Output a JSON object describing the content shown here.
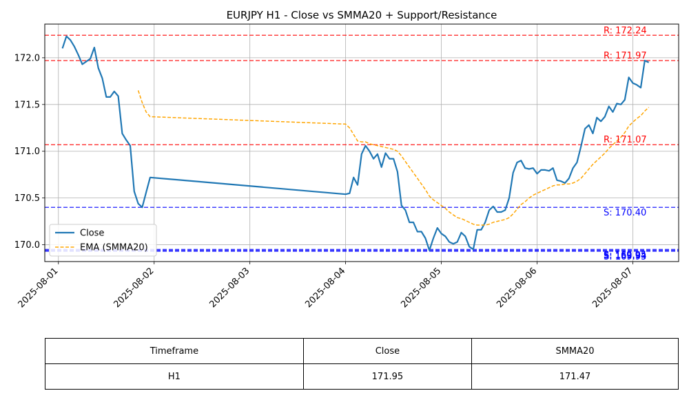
{
  "chart_data": {
    "type": "line",
    "title": "EURJPY H1 - Close vs SMMA20 + Support/Resistance",
    "xlabel": "",
    "ylabel": "",
    "x_ticks": [
      "2025-08-01",
      "2025-08-02",
      "2025-08-03",
      "2025-08-04",
      "2025-08-05",
      "2025-08-06",
      "2025-08-07"
    ],
    "y_ticks": [
      "170.0",
      "170.5",
      "171.0",
      "171.5",
      "172.0"
    ],
    "ylim": [
      169.82,
      172.36
    ],
    "grid": true,
    "legend_position": "lower-left",
    "series": [
      {
        "name": "Close",
        "style": "solid",
        "color": "#1f77b4",
        "points": [
          [
            "2025-08-01 01:00",
            172.1
          ],
          [
            "2025-08-01 02:00",
            172.23
          ],
          [
            "2025-08-01 03:00",
            172.19
          ],
          [
            "2025-08-01 04:00",
            172.12
          ],
          [
            "2025-08-01 05:00",
            172.03
          ],
          [
            "2025-08-01 06:00",
            171.93
          ],
          [
            "2025-08-01 07:00",
            171.96
          ],
          [
            "2025-08-01 08:00",
            171.99
          ],
          [
            "2025-08-01 09:00",
            172.11
          ],
          [
            "2025-08-01 10:00",
            171.89
          ],
          [
            "2025-08-01 11:00",
            171.78
          ],
          [
            "2025-08-01 12:00",
            171.58
          ],
          [
            "2025-08-01 13:00",
            171.58
          ],
          [
            "2025-08-01 14:00",
            171.64
          ],
          [
            "2025-08-01 15:00",
            171.59
          ],
          [
            "2025-08-01 16:00",
            171.19
          ],
          [
            "2025-08-01 17:00",
            171.12
          ],
          [
            "2025-08-01 18:00",
            171.06
          ],
          [
            "2025-08-01 19:00",
            170.57
          ],
          [
            "2025-08-01 20:00",
            170.44
          ],
          [
            "2025-08-01 21:00",
            170.4
          ],
          [
            "2025-08-01 22:00",
            170.56
          ],
          [
            "2025-08-01 23:00",
            170.72
          ],
          [
            "2025-08-04 00:00",
            170.54
          ],
          [
            "2025-08-04 01:00",
            170.55
          ],
          [
            "2025-08-04 02:00",
            170.72
          ],
          [
            "2025-08-04 03:00",
            170.64
          ],
          [
            "2025-08-04 04:00",
            170.97
          ],
          [
            "2025-08-04 05:00",
            171.06
          ],
          [
            "2025-08-04 06:00",
            171.0
          ],
          [
            "2025-08-04 07:00",
            170.92
          ],
          [
            "2025-08-04 08:00",
            170.97
          ],
          [
            "2025-08-04 09:00",
            170.83
          ],
          [
            "2025-08-04 10:00",
            170.98
          ],
          [
            "2025-08-04 11:00",
            170.92
          ],
          [
            "2025-08-04 12:00",
            170.92
          ],
          [
            "2025-08-04 13:00",
            170.78
          ],
          [
            "2025-08-04 14:00",
            170.42
          ],
          [
            "2025-08-04 15:00",
            170.37
          ],
          [
            "2025-08-04 16:00",
            170.24
          ],
          [
            "2025-08-04 17:00",
            170.24
          ],
          [
            "2025-08-04 18:00",
            170.14
          ],
          [
            "2025-08-04 19:00",
            170.14
          ],
          [
            "2025-08-04 20:00",
            170.07
          ],
          [
            "2025-08-04 21:00",
            169.94
          ],
          [
            "2025-08-04 22:00",
            170.07
          ],
          [
            "2025-08-04 23:00",
            170.18
          ],
          [
            "2025-08-05 00:00",
            170.12
          ],
          [
            "2025-08-05 01:00",
            170.09
          ],
          [
            "2025-08-05 02:00",
            170.03
          ],
          [
            "2025-08-05 03:00",
            170.01
          ],
          [
            "2025-08-05 04:00",
            170.03
          ],
          [
            "2025-08-05 05:00",
            170.13
          ],
          [
            "2025-08-05 06:00",
            170.09
          ],
          [
            "2025-08-05 07:00",
            169.98
          ],
          [
            "2025-08-05 08:00",
            169.95
          ],
          [
            "2025-08-05 09:00",
            170.16
          ],
          [
            "2025-08-05 10:00",
            170.16
          ],
          [
            "2025-08-05 11:00",
            170.24
          ],
          [
            "2025-08-05 12:00",
            170.37
          ],
          [
            "2025-08-05 13:00",
            170.41
          ],
          [
            "2025-08-05 14:00",
            170.35
          ],
          [
            "2025-08-05 15:00",
            170.35
          ],
          [
            "2025-08-05 16:00",
            170.37
          ],
          [
            "2025-08-05 17:00",
            170.5
          ],
          [
            "2025-08-05 18:00",
            170.77
          ],
          [
            "2025-08-05 19:00",
            170.88
          ],
          [
            "2025-08-05 20:00",
            170.9
          ],
          [
            "2025-08-05 21:00",
            170.82
          ],
          [
            "2025-08-05 22:00",
            170.81
          ],
          [
            "2025-08-05 23:00",
            170.82
          ],
          [
            "2025-08-06 00:00",
            170.76
          ],
          [
            "2025-08-06 01:00",
            170.8
          ],
          [
            "2025-08-06 02:00",
            170.8
          ],
          [
            "2025-08-06 03:00",
            170.79
          ],
          [
            "2025-08-06 04:00",
            170.82
          ],
          [
            "2025-08-06 05:00",
            170.69
          ],
          [
            "2025-08-06 06:00",
            170.68
          ],
          [
            "2025-08-06 07:00",
            170.66
          ],
          [
            "2025-08-06 08:00",
            170.71
          ],
          [
            "2025-08-06 09:00",
            170.82
          ],
          [
            "2025-08-06 10:00",
            170.88
          ],
          [
            "2025-08-06 11:00",
            171.05
          ],
          [
            "2025-08-06 12:00",
            171.24
          ],
          [
            "2025-08-06 13:00",
            171.28
          ],
          [
            "2025-08-06 14:00",
            171.19
          ],
          [
            "2025-08-06 15:00",
            171.36
          ],
          [
            "2025-08-06 16:00",
            171.32
          ],
          [
            "2025-08-06 17:00",
            171.37
          ],
          [
            "2025-08-06 18:00",
            171.48
          ],
          [
            "2025-08-06 19:00",
            171.42
          ],
          [
            "2025-08-06 20:00",
            171.51
          ],
          [
            "2025-08-06 21:00",
            171.5
          ],
          [
            "2025-08-06 22:00",
            171.55
          ],
          [
            "2025-08-06 23:00",
            171.79
          ],
          [
            "2025-08-07 00:00",
            171.73
          ],
          [
            "2025-08-07 01:00",
            171.71
          ],
          [
            "2025-08-07 02:00",
            171.68
          ],
          [
            "2025-08-07 03:00",
            171.97
          ],
          [
            "2025-08-07 04:00",
            171.95
          ]
        ]
      },
      {
        "name": "EMA (SMMA20)",
        "style": "dashed",
        "color": "#ffa500",
        "points": [
          [
            "2025-08-01 20:00",
            171.65
          ],
          [
            "2025-08-01 21:00",
            171.52
          ],
          [
            "2025-08-01 22:00",
            171.42
          ],
          [
            "2025-08-01 23:00",
            171.37
          ],
          [
            "2025-08-04 00:00",
            171.29
          ],
          [
            "2025-08-04 01:00",
            171.25
          ],
          [
            "2025-08-04 02:00",
            171.18
          ],
          [
            "2025-08-04 03:00",
            171.11
          ],
          [
            "2025-08-04 04:00",
            171.1
          ],
          [
            "2025-08-04 05:00",
            171.1
          ],
          [
            "2025-08-04 06:00",
            171.08
          ],
          [
            "2025-08-04 07:00",
            171.07
          ],
          [
            "2025-08-04 08:00",
            171.06
          ],
          [
            "2025-08-04 09:00",
            171.05
          ],
          [
            "2025-08-04 10:00",
            171.04
          ],
          [
            "2025-08-04 11:00",
            171.03
          ],
          [
            "2025-08-04 12:00",
            171.02
          ],
          [
            "2025-08-04 13:00",
            171.0
          ],
          [
            "2025-08-04 14:00",
            170.95
          ],
          [
            "2025-08-04 15:00",
            170.89
          ],
          [
            "2025-08-04 16:00",
            170.83
          ],
          [
            "2025-08-04 17:00",
            170.77
          ],
          [
            "2025-08-04 18:00",
            170.71
          ],
          [
            "2025-08-04 19:00",
            170.65
          ],
          [
            "2025-08-04 20:00",
            170.59
          ],
          [
            "2025-08-04 21:00",
            170.52
          ],
          [
            "2025-08-04 22:00",
            170.48
          ],
          [
            "2025-08-04 23:00",
            170.45
          ],
          [
            "2025-08-05 00:00",
            170.42
          ],
          [
            "2025-08-05 01:00",
            170.39
          ],
          [
            "2025-08-05 02:00",
            170.35
          ],
          [
            "2025-08-05 03:00",
            170.32
          ],
          [
            "2025-08-05 04:00",
            170.29
          ],
          [
            "2025-08-05 05:00",
            170.28
          ],
          [
            "2025-08-05 06:00",
            170.26
          ],
          [
            "2025-08-05 07:00",
            170.24
          ],
          [
            "2025-08-05 08:00",
            170.22
          ],
          [
            "2025-08-05 09:00",
            170.21
          ],
          [
            "2025-08-05 10:00",
            170.21
          ],
          [
            "2025-08-05 11:00",
            170.21
          ],
          [
            "2025-08-05 12:00",
            170.22
          ],
          [
            "2025-08-05 13:00",
            170.24
          ],
          [
            "2025-08-05 14:00",
            170.25
          ],
          [
            "2025-08-05 15:00",
            170.26
          ],
          [
            "2025-08-05 16:00",
            170.27
          ],
          [
            "2025-08-05 17:00",
            170.29
          ],
          [
            "2025-08-05 18:00",
            170.33
          ],
          [
            "2025-08-05 19:00",
            170.38
          ],
          [
            "2025-08-05 20:00",
            170.43
          ],
          [
            "2025-08-05 21:00",
            170.46
          ],
          [
            "2025-08-05 22:00",
            170.5
          ],
          [
            "2025-08-05 23:00",
            170.53
          ],
          [
            "2025-08-06 00:00",
            170.55
          ],
          [
            "2025-08-06 01:00",
            170.57
          ],
          [
            "2025-08-06 02:00",
            170.59
          ],
          [
            "2025-08-06 03:00",
            170.61
          ],
          [
            "2025-08-06 04:00",
            170.63
          ],
          [
            "2025-08-06 05:00",
            170.64
          ],
          [
            "2025-08-06 06:00",
            170.64
          ],
          [
            "2025-08-06 07:00",
            170.65
          ],
          [
            "2025-08-06 08:00",
            170.65
          ],
          [
            "2025-08-06 09:00",
            170.66
          ],
          [
            "2025-08-06 10:00",
            170.68
          ],
          [
            "2025-08-06 11:00",
            170.71
          ],
          [
            "2025-08-06 12:00",
            170.76
          ],
          [
            "2025-08-06 13:00",
            170.81
          ],
          [
            "2025-08-06 14:00",
            170.86
          ],
          [
            "2025-08-06 15:00",
            170.9
          ],
          [
            "2025-08-06 16:00",
            170.94
          ],
          [
            "2025-08-06 17:00",
            170.98
          ],
          [
            "2025-08-06 18:00",
            171.03
          ],
          [
            "2025-08-06 19:00",
            171.07
          ],
          [
            "2025-08-06 20:00",
            171.11
          ],
          [
            "2025-08-06 21:00",
            171.15
          ],
          [
            "2025-08-06 22:00",
            171.2
          ],
          [
            "2025-08-06 23:00",
            171.27
          ],
          [
            "2025-08-07 00:00",
            171.31
          ],
          [
            "2025-08-07 01:00",
            171.35
          ],
          [
            "2025-08-07 02:00",
            171.38
          ],
          [
            "2025-08-07 03:00",
            171.43
          ],
          [
            "2025-08-07 04:00",
            171.47
          ]
        ]
      }
    ],
    "levels": [
      {
        "kind": "resistance",
        "value": 172.24,
        "label": "R: 172.24",
        "color": "#ff0000"
      },
      {
        "kind": "resistance",
        "value": 171.97,
        "label": "R: 171.97",
        "color": "#ff0000"
      },
      {
        "kind": "resistance",
        "value": 171.07,
        "label": "R: 171.07",
        "color": "#ff0000"
      },
      {
        "kind": "support",
        "value": 170.4,
        "label": "S: 170.40",
        "color": "#0000ff"
      },
      {
        "kind": "support",
        "value": 169.95,
        "label": "S: 169.95",
        "color": "#0000ff"
      },
      {
        "kind": "support",
        "value": 169.94,
        "label": "S: 169.94",
        "color": "#0000ff"
      },
      {
        "kind": "support",
        "value": 169.93,
        "label": "S: 169.93",
        "color": "#0000ff"
      }
    ],
    "table": {
      "headers": [
        "Timeframe",
        "Close",
        "SMMA20"
      ],
      "rows": [
        [
          "H1",
          "171.95",
          "171.47"
        ]
      ]
    }
  }
}
